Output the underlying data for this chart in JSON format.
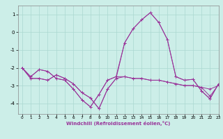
{
  "xlabel": "Windchill (Refroidissement éolien,°C)",
  "background_color": "#cceee8",
  "grid_color": "#aad8d0",
  "line_color": "#993399",
  "xlim": [
    -0.5,
    23
  ],
  "ylim": [
    -4.6,
    1.5
  ],
  "yticks": [
    -4,
    -3,
    -2,
    -1,
    0,
    1
  ],
  "xticks": [
    0,
    1,
    2,
    3,
    4,
    5,
    6,
    7,
    8,
    9,
    10,
    11,
    12,
    13,
    14,
    15,
    16,
    17,
    18,
    19,
    20,
    21,
    22,
    23
  ],
  "series": [
    [
      -2.0,
      -2.5,
      -2.1,
      -2.2,
      -2.6,
      -2.7,
      -3.2,
      -3.8,
      -4.2,
      -3.5,
      -2.7,
      -2.5,
      -2.5,
      -2.6,
      -2.6,
      -2.7,
      -2.7,
      -2.8,
      -2.9,
      -3.0,
      -3.0,
      -3.1,
      -3.2,
      -3.0
    ],
    [
      -2.0,
      -2.5,
      -2.1,
      -2.2,
      -2.6,
      -2.7,
      -3.2,
      -3.8,
      -4.2,
      -3.5,
      -2.7,
      -2.5,
      -0.6,
      0.2,
      0.7,
      1.1,
      0.55,
      -0.4,
      -2.5,
      -2.7,
      -2.65,
      -3.3,
      -3.75,
      -2.9
    ],
    [
      -2.0,
      -2.6,
      -2.6,
      -2.7,
      -2.4,
      -2.6,
      -2.9,
      -3.4,
      -3.7,
      -4.3,
      -3.2,
      -2.6,
      -2.5,
      -2.6,
      -2.6,
      -2.7,
      -2.7,
      -2.8,
      -2.9,
      -3.0,
      -3.0,
      -3.1,
      -3.6,
      -2.95
    ],
    [
      -2.0,
      -2.6,
      -2.6,
      -2.7,
      -2.4,
      -2.6,
      -2.9,
      -3.4,
      -3.7,
      -4.3,
      -3.2,
      -2.6,
      -0.6,
      0.2,
      0.7,
      1.1,
      0.55,
      -0.4,
      -2.5,
      -2.7,
      -2.65,
      -3.3,
      -3.75,
      -2.9
    ]
  ]
}
